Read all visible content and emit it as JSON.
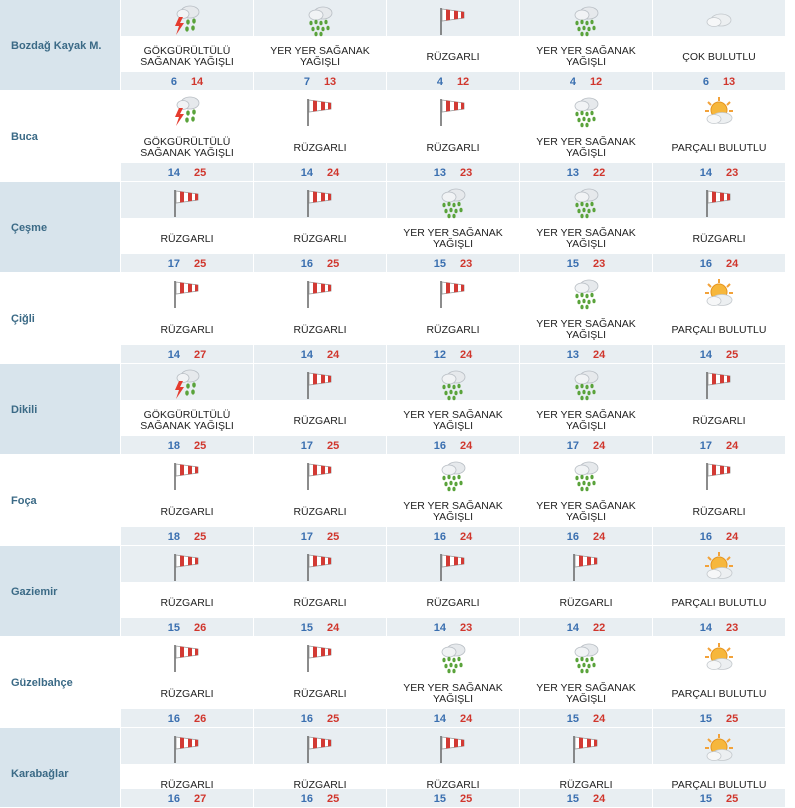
{
  "rows": [
    {
      "city": "Bozdağ Kayak M.",
      "days": [
        {
          "icon": "thunderstorm-icon",
          "cond": "GÖKGÜRÜLTÜLÜ SAĞANAK YAĞIŞLI",
          "min": "6",
          "max": "14"
        },
        {
          "icon": "shower-icon",
          "cond": "YER YER SAĞANAK YAĞIŞLI",
          "min": "7",
          "max": "13"
        },
        {
          "icon": "windsock-icon",
          "cond": "RÜZGARLI",
          "min": "4",
          "max": "12"
        },
        {
          "icon": "shower-icon",
          "cond": "YER YER SAĞANAK YAĞIŞLI",
          "min": "4",
          "max": "12"
        },
        {
          "icon": "cloud-icon",
          "cond": "ÇOK BULUTLU",
          "min": "6",
          "max": "13"
        }
      ]
    },
    {
      "city": "Buca",
      "days": [
        {
          "icon": "thunderstorm-icon",
          "cond": "GÖKGÜRÜLTÜLÜ SAĞANAK YAĞIŞLI",
          "min": "14",
          "max": "25"
        },
        {
          "icon": "windsock-icon",
          "cond": "RÜZGARLI",
          "min": "14",
          "max": "24"
        },
        {
          "icon": "windsock-icon",
          "cond": "RÜZGARLI",
          "min": "13",
          "max": "23"
        },
        {
          "icon": "shower-icon",
          "cond": "YER YER SAĞANAK YAĞIŞLI",
          "min": "13",
          "max": "22"
        },
        {
          "icon": "partly-cloudy-icon",
          "cond": "PARÇALI BULUTLU",
          "min": "14",
          "max": "23"
        }
      ]
    },
    {
      "city": "Çeşme",
      "days": [
        {
          "icon": "windsock-icon",
          "cond": "RÜZGARLI",
          "min": "17",
          "max": "25"
        },
        {
          "icon": "windsock-icon",
          "cond": "RÜZGARLI",
          "min": "16",
          "max": "25"
        },
        {
          "icon": "shower-icon",
          "cond": "YER YER SAĞANAK YAĞIŞLI",
          "min": "15",
          "max": "23"
        },
        {
          "icon": "shower-icon",
          "cond": "YER YER SAĞANAK YAĞIŞLI",
          "min": "15",
          "max": "23"
        },
        {
          "icon": "windsock-icon",
          "cond": "RÜZGARLI",
          "min": "16",
          "max": "24"
        }
      ]
    },
    {
      "city": "Çiğli",
      "days": [
        {
          "icon": "windsock-icon",
          "cond": "RÜZGARLI",
          "min": "14",
          "max": "27"
        },
        {
          "icon": "windsock-icon",
          "cond": "RÜZGARLI",
          "min": "14",
          "max": "24"
        },
        {
          "icon": "windsock-icon",
          "cond": "RÜZGARLI",
          "min": "12",
          "max": "24"
        },
        {
          "icon": "shower-icon",
          "cond": "YER YER SAĞANAK YAĞIŞLI",
          "min": "13",
          "max": "24"
        },
        {
          "icon": "partly-cloudy-icon",
          "cond": "PARÇALI BULUTLU",
          "min": "14",
          "max": "25"
        }
      ]
    },
    {
      "city": "Dikili",
      "days": [
        {
          "icon": "thunderstorm-icon",
          "cond": "GÖKGÜRÜLTÜLÜ SAĞANAK YAĞIŞLI",
          "min": "18",
          "max": "25"
        },
        {
          "icon": "windsock-icon",
          "cond": "RÜZGARLI",
          "min": "17",
          "max": "25"
        },
        {
          "icon": "shower-icon",
          "cond": "YER YER SAĞANAK YAĞIŞLI",
          "min": "16",
          "max": "24"
        },
        {
          "icon": "shower-icon",
          "cond": "YER YER SAĞANAK YAĞIŞLI",
          "min": "17",
          "max": "24"
        },
        {
          "icon": "windsock-icon",
          "cond": "RÜZGARLI",
          "min": "17",
          "max": "24"
        }
      ]
    },
    {
      "city": "Foça",
      "days": [
        {
          "icon": "windsock-icon",
          "cond": "RÜZGARLI",
          "min": "18",
          "max": "25"
        },
        {
          "icon": "windsock-icon",
          "cond": "RÜZGARLI",
          "min": "17",
          "max": "25"
        },
        {
          "icon": "shower-icon",
          "cond": "YER YER SAĞANAK YAĞIŞLI",
          "min": "16",
          "max": "24"
        },
        {
          "icon": "shower-icon",
          "cond": "YER YER SAĞANAK YAĞIŞLI",
          "min": "16",
          "max": "24"
        },
        {
          "icon": "windsock-icon",
          "cond": "RÜZGARLI",
          "min": "16",
          "max": "24"
        }
      ]
    },
    {
      "city": "Gaziemir",
      "days": [
        {
          "icon": "windsock-icon",
          "cond": "RÜZGARLI",
          "min": "15",
          "max": "26"
        },
        {
          "icon": "windsock-icon",
          "cond": "RÜZGARLI",
          "min": "15",
          "max": "24"
        },
        {
          "icon": "windsock-icon",
          "cond": "RÜZGARLI",
          "min": "14",
          "max": "23"
        },
        {
          "icon": "windsock-icon",
          "cond": "RÜZGARLI",
          "min": "14",
          "max": "22"
        },
        {
          "icon": "partly-cloudy-icon",
          "cond": "PARÇALI BULUTLU",
          "min": "14",
          "max": "23"
        }
      ]
    },
    {
      "city": "Güzelbahçe",
      "days": [
        {
          "icon": "windsock-icon",
          "cond": "RÜZGARLI",
          "min": "16",
          "max": "26"
        },
        {
          "icon": "windsock-icon",
          "cond": "RÜZGARLI",
          "min": "16",
          "max": "25"
        },
        {
          "icon": "shower-icon",
          "cond": "YER YER SAĞANAK YAĞIŞLI",
          "min": "14",
          "max": "24"
        },
        {
          "icon": "shower-icon",
          "cond": "YER YER SAĞANAK YAĞIŞLI",
          "min": "15",
          "max": "24"
        },
        {
          "icon": "partly-cloudy-icon",
          "cond": "PARÇALI BULUTLU",
          "min": "15",
          "max": "25"
        }
      ]
    },
    {
      "city": "Karabağlar",
      "days": [
        {
          "icon": "windsock-icon",
          "cond": "RÜZGARLI",
          "min": "16",
          "max": "27"
        },
        {
          "icon": "windsock-icon",
          "cond": "RÜZGARLI",
          "min": "16",
          "max": "25"
        },
        {
          "icon": "windsock-icon",
          "cond": "RÜZGARLI",
          "min": "15",
          "max": "25"
        },
        {
          "icon": "windsock-icon",
          "cond": "RÜZGARLI",
          "min": "15",
          "max": "24"
        },
        {
          "icon": "partly-cloudy-icon",
          "cond": "PARÇALI BULUTLU",
          "min": "15",
          "max": "25"
        }
      ]
    }
  ]
}
